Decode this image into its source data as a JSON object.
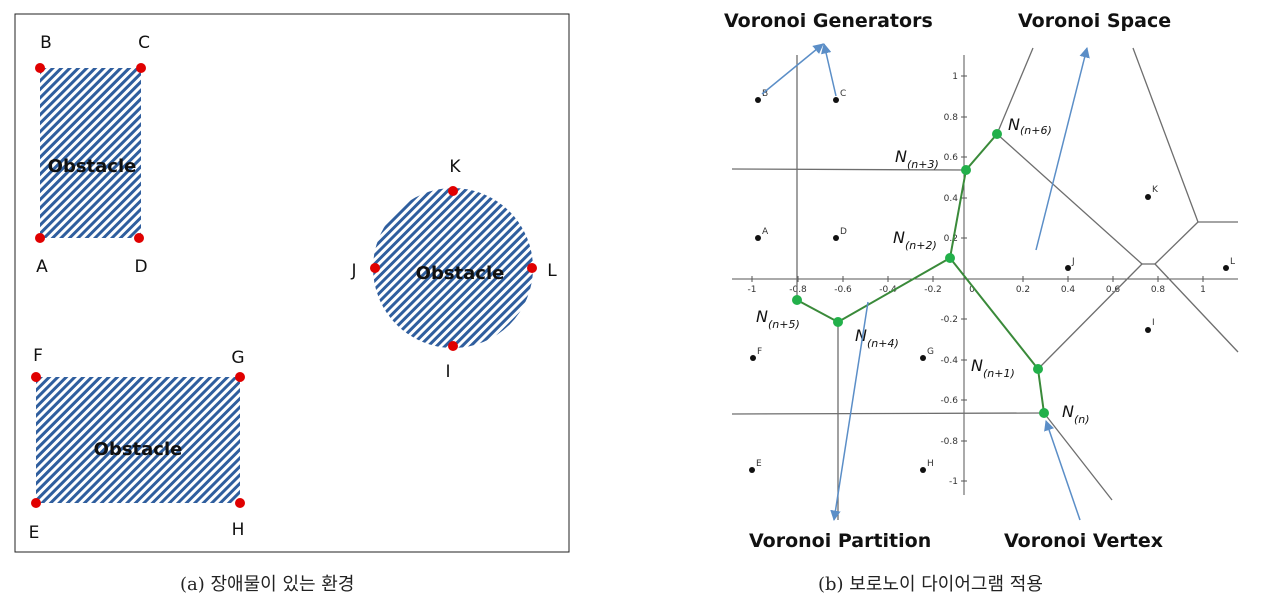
{
  "panel_a": {
    "points": [
      "B",
      "C",
      "A",
      "D",
      "K",
      "J",
      "L",
      "I",
      "F",
      "G",
      "E",
      "H"
    ],
    "obstacles": [
      "Obstacle",
      "Obstacle",
      "Obstacle"
    ]
  },
  "panel_b": {
    "labels": {
      "generators": "Voronoi Generators",
      "space": "Voronoi Space",
      "partition": "Voronoi Partition",
      "vertex": "Voronoi Vertex"
    },
    "x_ticks": [
      "-1",
      "-0.8",
      "-0.6",
      "-0.4",
      "-0.2",
      "0",
      "0.2",
      "0.4",
      "0.6",
      "0.8",
      "1"
    ],
    "y_ticks": [
      "1",
      "0.8",
      "0.6",
      "0.4",
      "0.2",
      "-0.2",
      "-0.4",
      "-0.6",
      "-0.8",
      "-1"
    ],
    "sites": [
      "B",
      "C",
      "A",
      "D",
      "K",
      "J",
      "L",
      "I",
      "F",
      "G",
      "E",
      "H"
    ],
    "nodes": [
      {
        "label": "N",
        "sub": "(n+6)"
      },
      {
        "label": "N",
        "sub": "(n+3)"
      },
      {
        "label": "N",
        "sub": "(n+2)"
      },
      {
        "label": "N",
        "sub": "(n+5)"
      },
      {
        "label": "N",
        "sub": "(n+4)"
      },
      {
        "label": "N",
        "sub": "(n+1)"
      },
      {
        "label": "N",
        "sub": "(n)"
      }
    ]
  },
  "captions": {
    "a": "(a) 장애물이 있는 환경",
    "b": "(b) 보로노이 다이어그램 적용"
  },
  "colors": {
    "obstacle_hatch": "#2f5e9e",
    "corner_point": "#e00000",
    "path": "#3a8a3a",
    "node": "#22b04a",
    "arrow": "#5b8ec7",
    "voronoi_edge": "#6e6e6e"
  }
}
